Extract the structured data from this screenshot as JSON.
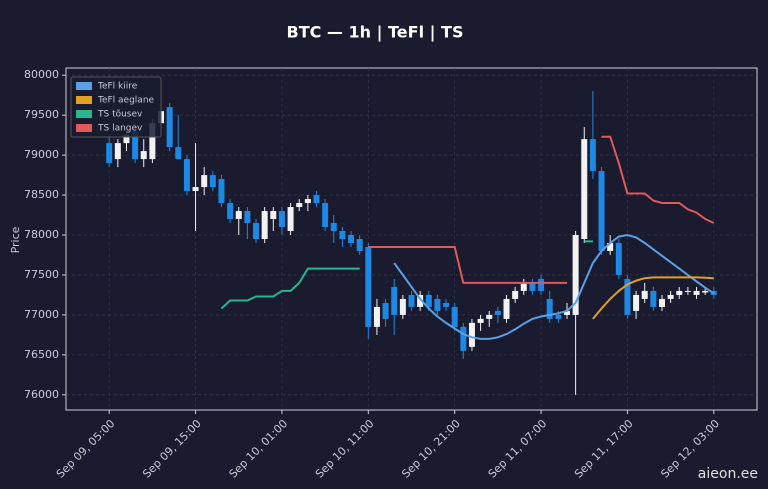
{
  "chart_data": {
    "type": "candlestick",
    "title": "BTC — 1h  |  TeFl  |  TS",
    "y_label": "Price",
    "watermark": "aieon.ee",
    "x": [
      "Sep 09, 05:00",
      "Sep 09, 06:00",
      "Sep 09, 07:00",
      "Sep 09, 08:00",
      "Sep 09, 09:00",
      "Sep 09, 10:00",
      "Sep 09, 11:00",
      "Sep 09, 12:00",
      "Sep 09, 13:00",
      "Sep 09, 14:00",
      "Sep 09, 15:00",
      "Sep 09, 16:00",
      "Sep 09, 17:00",
      "Sep 09, 18:00",
      "Sep 09, 19:00",
      "Sep 09, 20:00",
      "Sep 09, 21:00",
      "Sep 09, 22:00",
      "Sep 09, 23:00",
      "Sep 10, 00:00",
      "Sep 10, 01:00",
      "Sep 10, 02:00",
      "Sep 10, 03:00",
      "Sep 10, 04:00",
      "Sep 10, 05:00",
      "Sep 10, 06:00",
      "Sep 10, 07:00",
      "Sep 10, 08:00",
      "Sep 10, 09:00",
      "Sep 10, 10:00",
      "Sep 10, 11:00",
      "Sep 10, 12:00",
      "Sep 10, 13:00",
      "Sep 10, 14:00",
      "Sep 10, 15:00",
      "Sep 10, 16:00",
      "Sep 10, 17:00",
      "Sep 10, 18:00",
      "Sep 10, 19:00",
      "Sep 10, 20:00",
      "Sep 10, 21:00",
      "Sep 10, 22:00",
      "Sep 10, 23:00",
      "Sep 11, 00:00",
      "Sep 11, 01:00",
      "Sep 11, 02:00",
      "Sep 11, 03:00",
      "Sep 11, 04:00",
      "Sep 11, 05:00",
      "Sep 11, 06:00",
      "Sep 11, 07:00",
      "Sep 11, 08:00",
      "Sep 11, 09:00",
      "Sep 11, 10:00",
      "Sep 11, 11:00",
      "Sep 11, 12:00",
      "Sep 11, 13:00",
      "Sep 11, 14:00",
      "Sep 11, 15:00",
      "Sep 11, 16:00",
      "Sep 11, 17:00",
      "Sep 11, 18:00",
      "Sep 11, 19:00",
      "Sep 11, 20:00",
      "Sep 11, 21:00",
      "Sep 11, 22:00",
      "Sep 11, 23:00",
      "Sep 12, 00:00",
      "Sep 12, 01:00",
      "Sep 12, 02:00",
      "Sep 12, 03:00"
    ],
    "open": [
      79150,
      78950,
      79150,
      79300,
      78950,
      78950,
      79400,
      79600,
      79100,
      78950,
      78550,
      78600,
      78750,
      78700,
      78400,
      78200,
      78300,
      78150,
      77950,
      78200,
      78300,
      78050,
      78350,
      78400,
      78500,
      78400,
      78150,
      78050,
      78000,
      77950,
      77850,
      76850,
      77150,
      77350,
      77000,
      77250,
      77100,
      77250,
      77200,
      77150,
      77100,
      76850,
      76600,
      76900,
      76950,
      77050,
      76950,
      77200,
      77300,
      77400,
      77450,
      77200,
      77000,
      77000,
      77000,
      77950,
      79200,
      78800,
      77800,
      77900,
      77450,
      77050,
      77200,
      77300,
      77100,
      77200,
      77250,
      77300,
      77250,
      77280,
      77300
    ],
    "high": [
      79250,
      79200,
      79300,
      79400,
      79200,
      79450,
      79600,
      79650,
      79500,
      79000,
      79150,
      78850,
      78800,
      78750,
      78450,
      78350,
      78350,
      78200,
      78350,
      78350,
      78350,
      78400,
      78450,
      78500,
      78550,
      78450,
      78250,
      78100,
      78050,
      78000,
      77900,
      77200,
      77200,
      77450,
      77250,
      77300,
      77300,
      77300,
      77250,
      77200,
      77150,
      76900,
      76950,
      77000,
      77050,
      77100,
      77250,
      77350,
      77450,
      77450,
      77500,
      77300,
      77050,
      77150,
      78050,
      79350,
      79800,
      78850,
      78000,
      77950,
      77500,
      77300,
      77400,
      77350,
      77250,
      77300,
      77350,
      77350,
      77350,
      77350,
      77350
    ],
    "low": [
      78850,
      78850,
      79050,
      78900,
      78850,
      78900,
      79300,
      79050,
      78950,
      78500,
      78050,
      78500,
      78550,
      78350,
      78150,
      78000,
      77950,
      77900,
      77900,
      78050,
      78000,
      78000,
      78300,
      78300,
      78350,
      78050,
      77900,
      77850,
      77850,
      77750,
      76700,
      76750,
      76850,
      76750,
      76950,
      77050,
      77050,
      77050,
      77000,
      77050,
      76800,
      76450,
      76550,
      76800,
      76850,
      76900,
      76900,
      77150,
      77250,
      77250,
      77250,
      76900,
      76900,
      76950,
      76000,
      77900,
      78700,
      77750,
      77750,
      77450,
      76950,
      76950,
      77150,
      77050,
      77050,
      77150,
      77200,
      77250,
      77200,
      77250,
      77200
    ],
    "close": [
      78900,
      79150,
      79250,
      78950,
      79050,
      79400,
      79550,
      79100,
      78950,
      78550,
      78600,
      78750,
      78600,
      78400,
      78200,
      78300,
      78150,
      77950,
      78300,
      78300,
      78100,
      78350,
      78400,
      78450,
      78400,
      78100,
      78050,
      77950,
      77900,
      77800,
      76850,
      77100,
      76950,
      77000,
      77200,
      77100,
      77250,
      77100,
      77050,
      77100,
      76850,
      76550,
      76900,
      76950,
      77000,
      77000,
      77200,
      77300,
      77400,
      77300,
      77300,
      76950,
      76950,
      77050,
      78000,
      79200,
      78800,
      77800,
      77900,
      77500,
      77000,
      77250,
      77300,
      77100,
      77200,
      77250,
      77300,
      77300,
      77300,
      77300,
      77250
    ],
    "up_color": "#f2f2f2",
    "down_color": "#1e88e5",
    "series": [
      {
        "name": "TeFl kiire",
        "color": "#5aa0e8",
        "values": [
          null,
          null,
          null,
          null,
          null,
          null,
          null,
          null,
          null,
          null,
          null,
          null,
          null,
          null,
          null,
          null,
          null,
          null,
          null,
          null,
          null,
          null,
          null,
          null,
          null,
          null,
          null,
          null,
          null,
          null,
          null,
          null,
          null,
          77650,
          77500,
          77350,
          77200,
          77080,
          76980,
          76900,
          76830,
          76760,
          76720,
          76700,
          76700,
          76720,
          76760,
          76820,
          76890,
          76950,
          76980,
          77000,
          77020,
          77050,
          77150,
          77400,
          77650,
          77800,
          77900,
          77980,
          78000,
          77970,
          77900,
          77820,
          77740,
          77660,
          77580,
          77500,
          77420,
          77340,
          77270
        ]
      },
      {
        "name": "TeFl aeglane",
        "color": "#e0a020",
        "values": [
          null,
          null,
          null,
          null,
          null,
          null,
          null,
          null,
          null,
          null,
          null,
          null,
          null,
          null,
          null,
          null,
          null,
          null,
          null,
          null,
          null,
          null,
          null,
          null,
          null,
          null,
          null,
          null,
          null,
          null,
          null,
          null,
          null,
          null,
          null,
          null,
          null,
          null,
          null,
          null,
          null,
          null,
          null,
          null,
          null,
          null,
          null,
          null,
          null,
          null,
          null,
          null,
          null,
          null,
          null,
          null,
          76950,
          77080,
          77200,
          77300,
          77380,
          77430,
          77460,
          77470,
          77470,
          77470,
          77470,
          77470,
          77470,
          77465,
          77460
        ]
      },
      {
        "name": "TS tõusev",
        "color": "#2bb58f",
        "values": [
          null,
          null,
          null,
          null,
          null,
          null,
          null,
          null,
          null,
          null,
          null,
          null,
          null,
          77080,
          77180,
          77180,
          77180,
          77230,
          77230,
          77230,
          77300,
          77300,
          77400,
          77580,
          77580,
          77580,
          77580,
          77580,
          77580,
          77580,
          null,
          null,
          null,
          null,
          null,
          null,
          null,
          null,
          null,
          null,
          null,
          null,
          null,
          null,
          null,
          null,
          null,
          null,
          null,
          null,
          null,
          null,
          null,
          null,
          null,
          77920,
          77920,
          null,
          null,
          null,
          null,
          null,
          null,
          null,
          null,
          null,
          null,
          null,
          null,
          null,
          null
        ]
      },
      {
        "name": "TS langev",
        "color": "#e05a5a",
        "values": [
          null,
          null,
          null,
          null,
          null,
          null,
          null,
          null,
          null,
          null,
          null,
          null,
          null,
          null,
          null,
          null,
          null,
          null,
          null,
          null,
          null,
          null,
          null,
          null,
          null,
          null,
          null,
          null,
          null,
          null,
          77850,
          77850,
          77850,
          77850,
          77850,
          77850,
          77850,
          77850,
          77850,
          77850,
          77850,
          77400,
          77400,
          77400,
          77400,
          77400,
          77400,
          77400,
          77400,
          77400,
          77400,
          77400,
          77400,
          77400,
          null,
          null,
          null,
          79230,
          79230,
          78900,
          78520,
          78520,
          78520,
          78430,
          78400,
          78400,
          78400,
          78320,
          78280,
          78200,
          78150
        ]
      }
    ],
    "xlim": [
      "Sep 09, 00:00",
      "Sep 12, 08:00"
    ],
    "xticks": [
      "Sep 09, 05:00",
      "Sep 09, 15:00",
      "Sep 10, 01:00",
      "Sep 10, 11:00",
      "Sep 10, 21:00",
      "Sep 11, 07:00",
      "Sep 11, 17:00",
      "Sep 12, 03:00"
    ],
    "ylim": [
      75810,
      80090
    ],
    "yticks": [
      76000,
      76500,
      77000,
      77500,
      78000,
      78500,
      79000,
      79500,
      80000
    ],
    "grid": true,
    "legend": "upper-left"
  }
}
